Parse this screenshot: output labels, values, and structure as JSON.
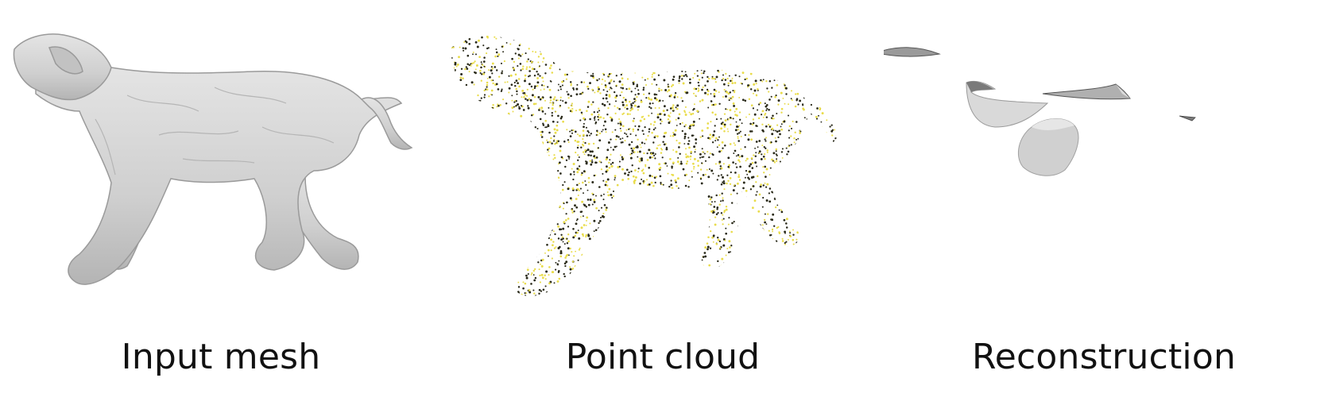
{
  "panels": [
    {
      "caption": "Input mesh"
    },
    {
      "caption": "Point cloud"
    },
    {
      "caption": "Reconstruction"
    }
  ],
  "colors": {
    "mesh_fill": "#d4d4d4",
    "mesh_shade": "#b3b3b3",
    "point_dark": "#2a2a1a",
    "point_yellow": "#e9dc4a",
    "recon_light": "#d6d6d6",
    "recon_dark": "#8e8e8e"
  }
}
